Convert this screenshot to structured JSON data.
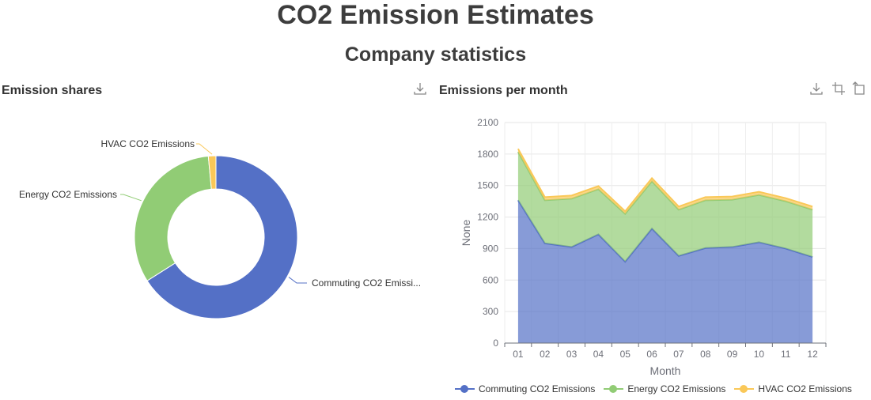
{
  "header": {
    "title": "CO2 Emission Estimates",
    "subtitle": "Company statistics"
  },
  "colors": {
    "commuting": "#5470c6",
    "energy": "#91cc75",
    "hvac": "#fac858"
  },
  "pie_panel": {
    "title": "Emission shares",
    "toolbar": [
      "download-icon"
    ]
  },
  "area_panel": {
    "title": "Emissions per month",
    "toolbar": [
      "download-icon",
      "zoom-select-icon",
      "zoom-reset-icon"
    ]
  },
  "chart_data": [
    {
      "type": "pie",
      "variant": "donut",
      "title": "Emission shares",
      "slices": [
        {
          "name": "Commuting CO2 Emissions",
          "label": "Commuting CO2 Emissi...",
          "value": 66.0
        },
        {
          "name": "Energy CO2 Emissions",
          "label": "Energy CO2 Emissions",
          "value": 32.5
        },
        {
          "name": "HVAC CO2 Emissions",
          "label": "HVAC CO2 Emissions",
          "value": 1.5
        }
      ]
    },
    {
      "type": "area",
      "stacked": true,
      "title": "Emissions per month",
      "xlabel": "Month",
      "ylabel": "None",
      "ylim": [
        0,
        2100
      ],
      "yticks": [
        0,
        300,
        600,
        900,
        1200,
        1500,
        1800,
        2100
      ],
      "categories": [
        "01",
        "02",
        "03",
        "04",
        "05",
        "06",
        "07",
        "08",
        "09",
        "10",
        "11",
        "12"
      ],
      "grid": true,
      "legend_position": "bottom",
      "series": [
        {
          "name": "Commuting CO2 Emissions",
          "values": [
            1360,
            950,
            915,
            1035,
            775,
            1090,
            830,
            905,
            915,
            960,
            900,
            820
          ]
        },
        {
          "name": "Energy CO2 Emissions",
          "values": [
            460,
            410,
            460,
            430,
            455,
            450,
            440,
            455,
            450,
            450,
            450,
            450
          ]
        },
        {
          "name": "HVAC CO2 Emissions",
          "values": [
            30,
            30,
            30,
            30,
            25,
            30,
            30,
            30,
            30,
            30,
            30,
            30
          ]
        }
      ]
    }
  ]
}
